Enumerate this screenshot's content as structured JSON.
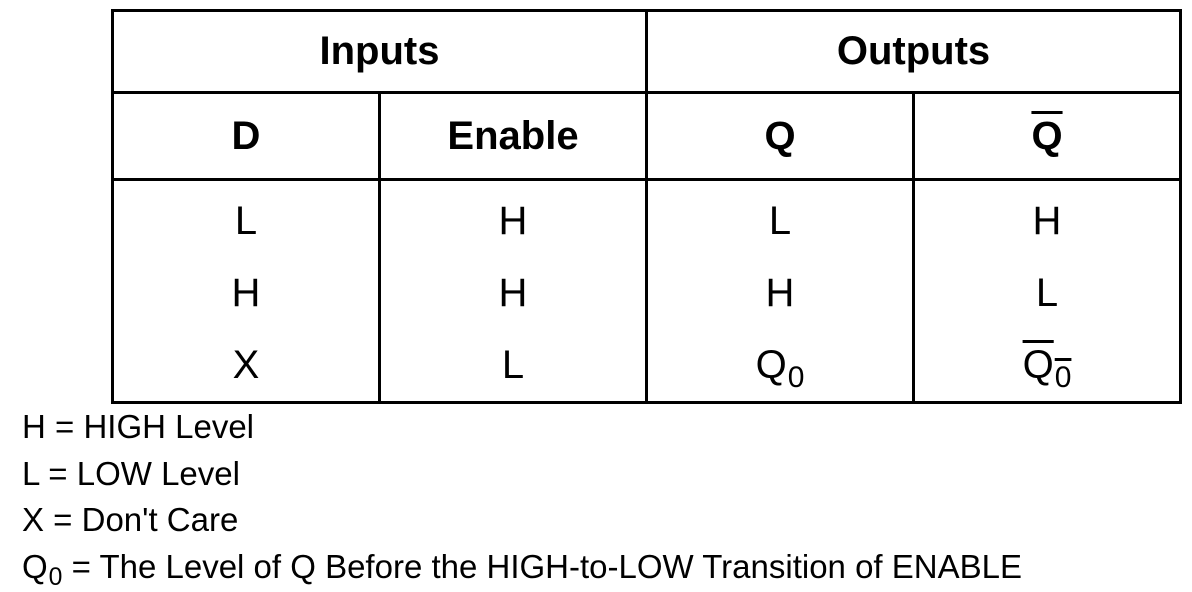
{
  "table": {
    "groups": {
      "inputs": "Inputs",
      "outputs": "Outputs"
    },
    "headers": {
      "d": "D",
      "enable": "Enable",
      "q": "Q",
      "q_bar": "Q"
    },
    "rows": [
      {
        "d": "L",
        "enable": "H",
        "q": "L",
        "q_bar": "H"
      },
      {
        "d": "H",
        "enable": "H",
        "q": "H",
        "q_bar": "L"
      },
      {
        "d": "X",
        "enable": "L",
        "q": "Q",
        "q_sub": "0",
        "q_bar": "Q",
        "q_bar_sub": "0"
      }
    ]
  },
  "legend": {
    "h": "H = HIGH Level",
    "l": "L = LOW Level",
    "x": "X = Don't Care",
    "q0_symbol": "Q",
    "q0_sub": "0",
    "q0_text": " = The Level of Q Before the HIGH-to-LOW Transition of ENABLE"
  }
}
